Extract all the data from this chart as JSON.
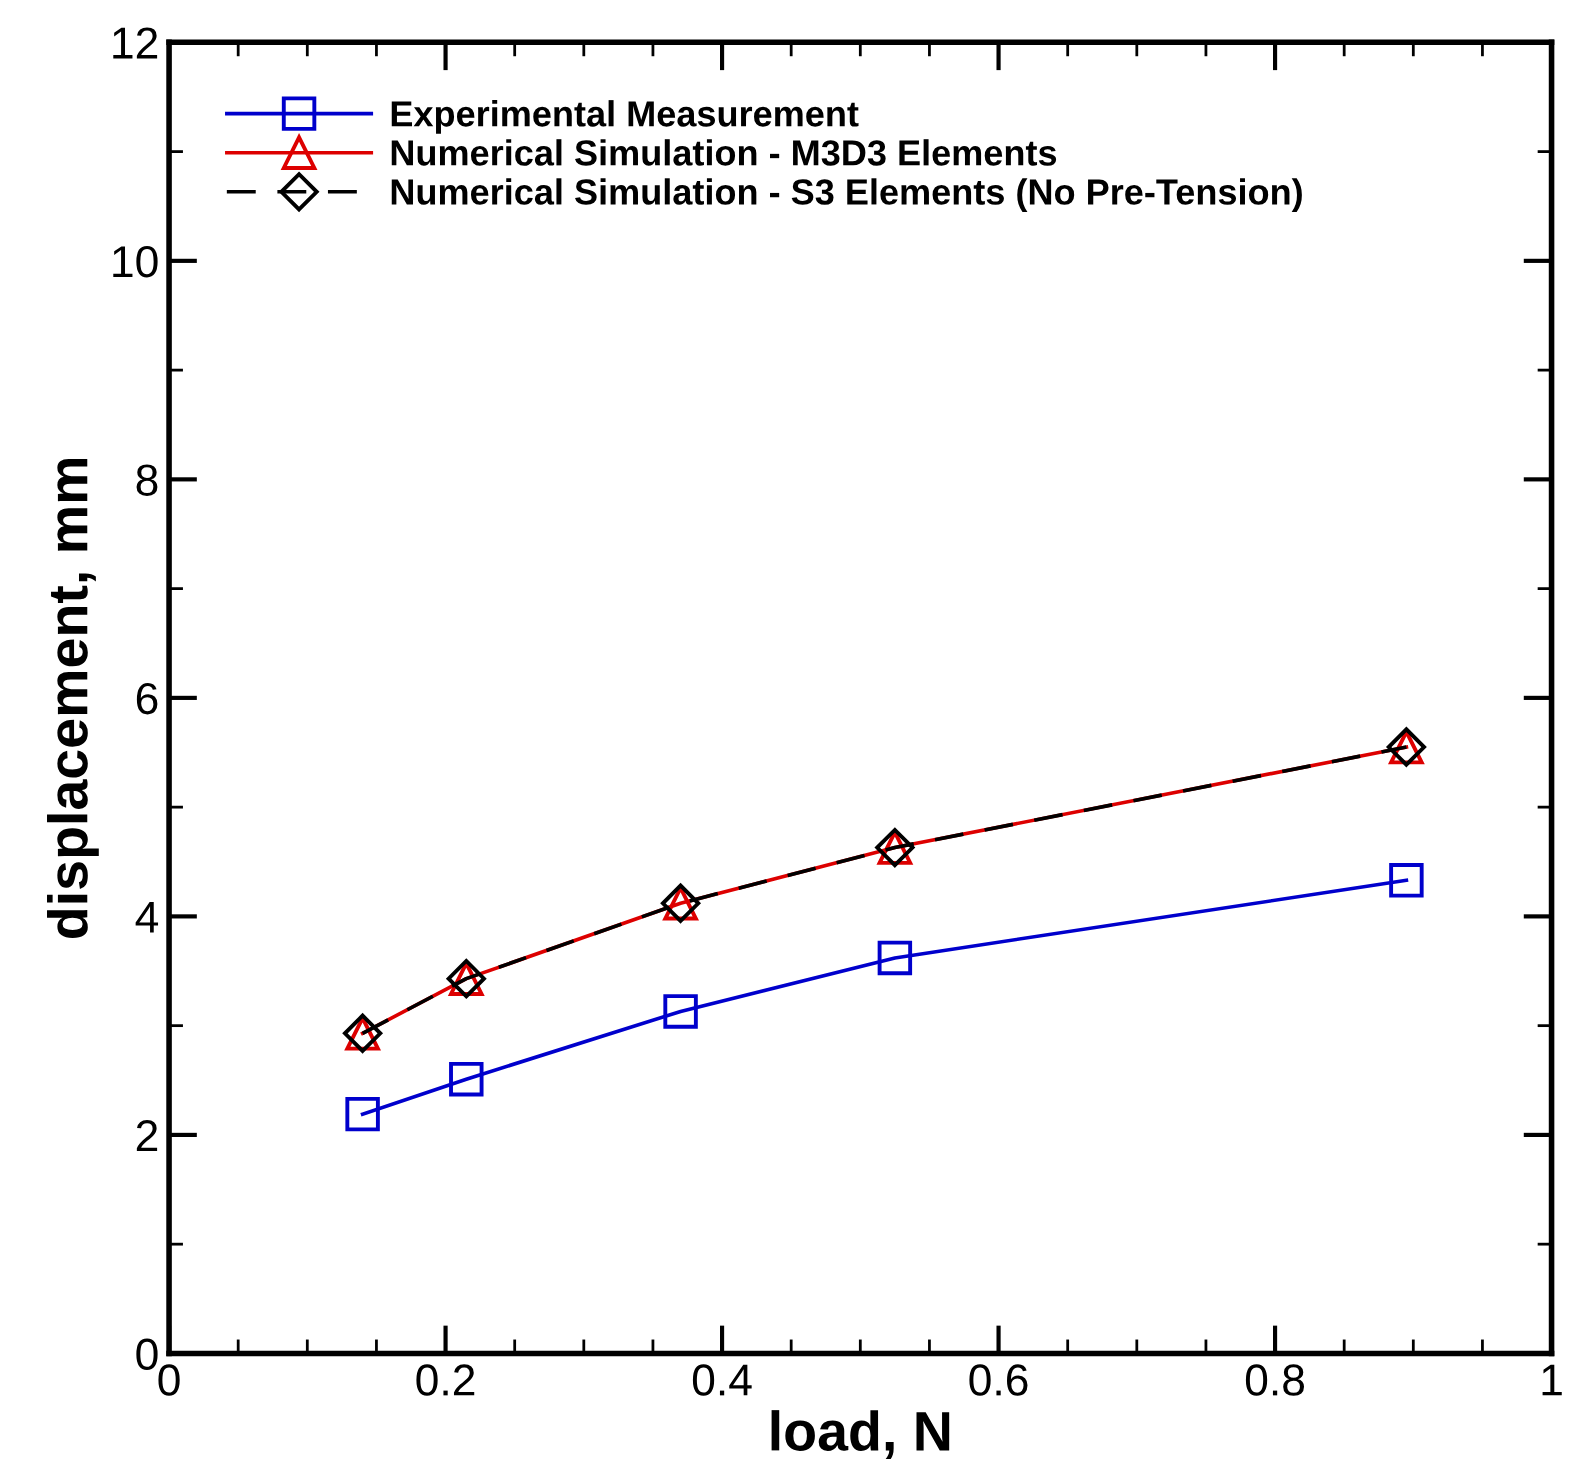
{
  "chart_data": {
    "type": "line",
    "xlabel": "load, N",
    "ylabel": "displacement, mm",
    "x": [
      0.14,
      0.215,
      0.37,
      0.525,
      0.895
    ],
    "series": [
      {
        "name": "Experimental Measurement",
        "color": "#0000cc",
        "values": [
          2.19,
          2.51,
          3.13,
          3.62,
          4.33
        ],
        "marker": "square",
        "line_style": "solid"
      },
      {
        "name": "Numerical Simulation - M3D3 Elements",
        "color": "#dd0000",
        "values": [
          2.93,
          3.43,
          4.12,
          4.63,
          5.55
        ],
        "marker": "triangle",
        "line_style": "solid"
      },
      {
        "name": "Numerical Simulation - S3 Elements (No Pre-Tension)",
        "color": "#000000",
        "values": [
          2.93,
          3.43,
          4.12,
          4.63,
          5.55
        ],
        "marker": "diamond",
        "line_style": "dashed"
      }
    ],
    "xlim": [
      0,
      1
    ],
    "xticks": [
      0,
      0.2,
      0.4,
      0.6,
      0.8,
      1
    ],
    "ylim": [
      0,
      12
    ],
    "yticks": [
      0,
      2,
      4,
      6,
      8,
      10,
      12
    ],
    "grid": false,
    "legend": "top left"
  }
}
